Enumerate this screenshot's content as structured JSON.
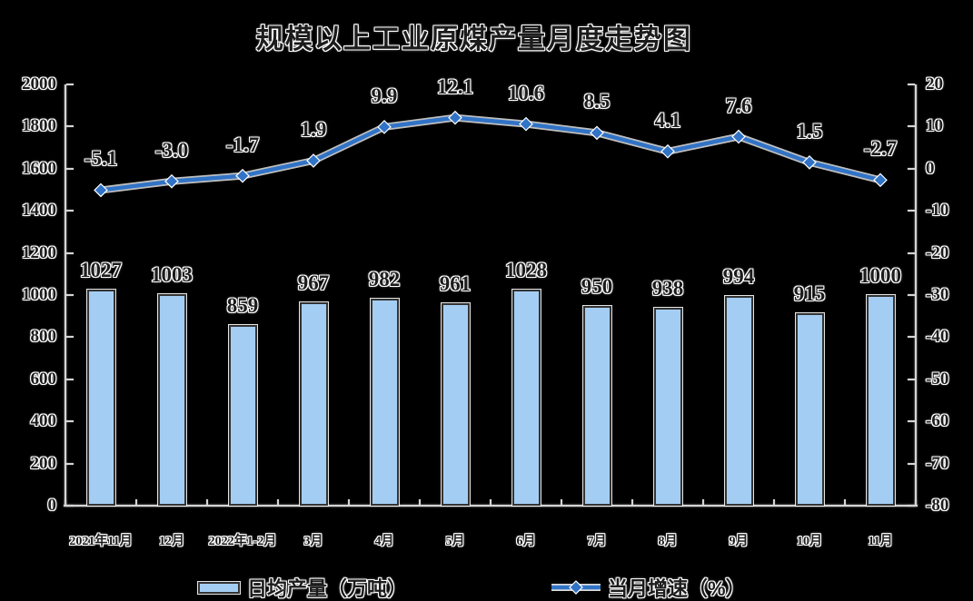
{
  "page": {
    "background": "#000000"
  },
  "chart_data": {
    "type": "bar",
    "title": "规模以上工业原煤产量月度走势图",
    "categories": [
      "2021年11月",
      "12月",
      "2022年1-2月",
      "3月",
      "4月",
      "5月",
      "6月",
      "7月",
      "8月",
      "9月",
      "10月",
      "11月"
    ],
    "series": [
      {
        "name": "日均产量（万吨）",
        "type": "bar",
        "axis": "left",
        "color": "#A4CDF3",
        "values": [
          1027,
          1003,
          859,
          967,
          982,
          961,
          1028,
          950,
          938,
          994,
          915,
          1000
        ],
        "value_labels": [
          "1027",
          "1003",
          "859",
          "967",
          "982",
          "961",
          "1028",
          "950",
          "938",
          "994",
          "915",
          "1000"
        ]
      },
      {
        "name": "当月增速（%）",
        "type": "line",
        "axis": "right",
        "color": "#3173C6",
        "marker": "diamond",
        "values": [
          -5.1,
          -3.0,
          -1.7,
          1.9,
          9.9,
          12.1,
          10.6,
          8.5,
          4.1,
          7.6,
          1.5,
          -2.7
        ],
        "value_labels": [
          "-5.1",
          "-3.0",
          "-1.7",
          "1.9",
          "9.9",
          "12.1",
          "10.6",
          "8.5",
          "4.1",
          "7.6",
          "1.5",
          "-2.7"
        ]
      }
    ],
    "left_axis": {
      "min": 0,
      "max": 2000,
      "step": 200,
      "tick_labels": [
        "0",
        "200",
        "400",
        "600",
        "800",
        "1000",
        "1200",
        "1400",
        "1600",
        "1800",
        "2000"
      ]
    },
    "right_axis": {
      "min": -80,
      "max": 20,
      "step": 10,
      "tick_labels": [
        "-80",
        "-70",
        "-60",
        "-50",
        "-40",
        "-30",
        "-20",
        "-10",
        "0",
        "10",
        "20"
      ]
    },
    "grid": false,
    "legend_position": "bottom"
  }
}
